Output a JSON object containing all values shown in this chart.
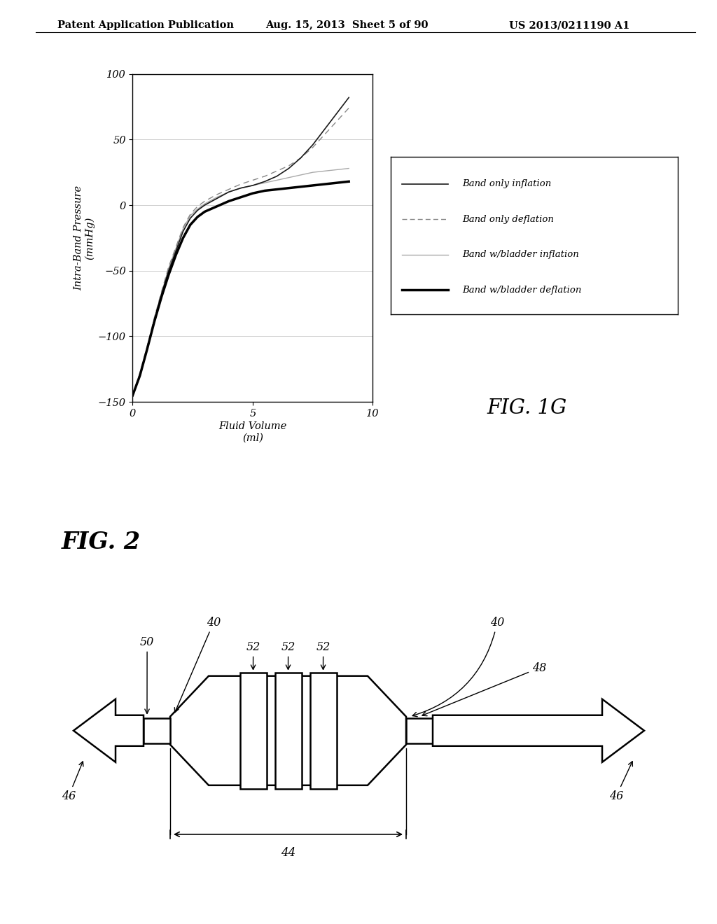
{
  "header_left": "Patent Application Publication",
  "header_mid": "Aug. 15, 2013  Sheet 5 of 90",
  "header_right": "US 2013/0211190 A1",
  "fig1g_title": "FIG. 1G",
  "fig2_title": "FIG. 2",
  "xlabel": "Fluid Volume\n(ml)",
  "ylabel": "Intra-Band Pressure\n(mmHg)",
  "xlim": [
    0,
    10
  ],
  "ylim": [
    -150,
    100
  ],
  "xticks": [
    0,
    5,
    10
  ],
  "yticks": [
    -150,
    -100,
    -50,
    0,
    50,
    100
  ],
  "legend_entries": [
    "Band only inflation",
    "Band only deflation",
    "Band w/bladder inflation",
    "Band w/bladder deflation"
  ],
  "bg_color": "#ffffff",
  "x_data": [
    0,
    0.3,
    0.6,
    0.9,
    1.2,
    1.5,
    1.8,
    2.1,
    2.4,
    2.7,
    3.0,
    3.5,
    4.0,
    4.5,
    5.0,
    5.5,
    6.0,
    6.5,
    7.0,
    7.5,
    8.0,
    8.5,
    9.0
  ],
  "y_band_inflation": [
    -145,
    -130,
    -110,
    -88,
    -68,
    -50,
    -35,
    -20,
    -10,
    -4,
    0,
    5,
    10,
    13,
    15,
    18,
    22,
    28,
    36,
    46,
    58,
    70,
    82
  ],
  "y_band_deflation": [
    -145,
    -128,
    -108,
    -86,
    -66,
    -47,
    -32,
    -17,
    -7,
    -1,
    3,
    8,
    12,
    16,
    19,
    22,
    26,
    30,
    36,
    44,
    54,
    64,
    74
  ],
  "y_bladder_inflation": [
    -145,
    -130,
    -110,
    -87,
    -67,
    -48,
    -33,
    -18,
    -8,
    -3,
    1,
    6,
    10,
    13,
    15,
    17,
    19,
    21,
    23,
    25,
    26,
    27,
    28
  ],
  "y_bladder_deflation": [
    -145,
    -130,
    -110,
    -89,
    -70,
    -53,
    -38,
    -25,
    -15,
    -9,
    -5,
    -1,
    3,
    6,
    9,
    11,
    12,
    13,
    14,
    15,
    16,
    17,
    18
  ]
}
